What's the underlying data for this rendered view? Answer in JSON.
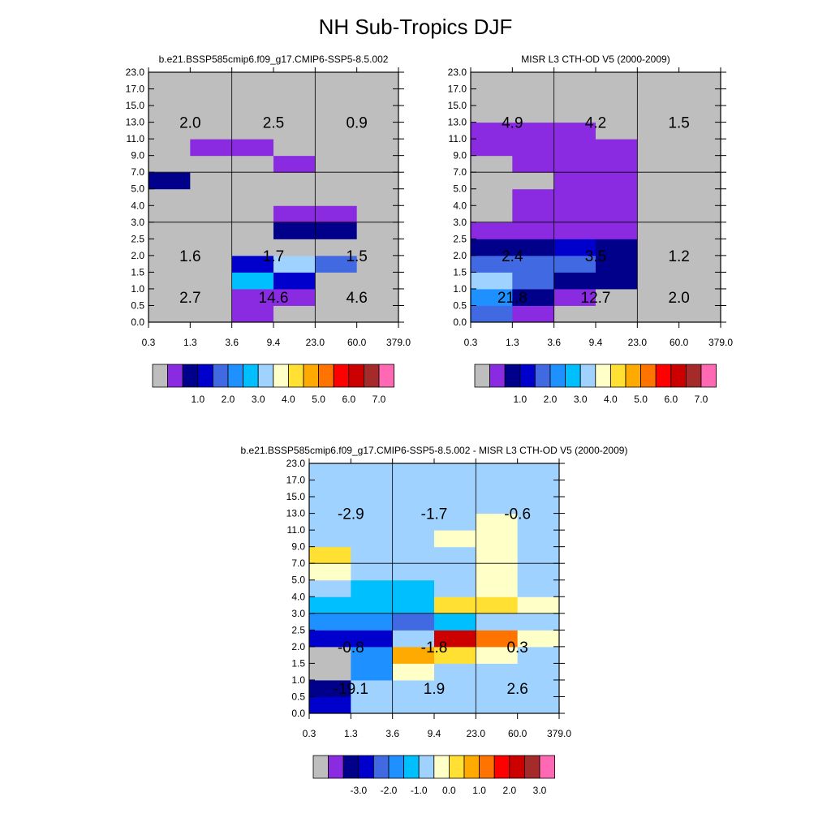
{
  "page_title": "NH Sub-Tropics DJF",
  "palette": [
    "#bebebe",
    "#8a2be2",
    "#00008b",
    "#0000cd",
    "#4169e1",
    "#1e90ff",
    "#00bfff",
    "#a0d2ff",
    "#ffffc8",
    "#ffe033",
    "#ffaa00",
    "#ff7300",
    "#ff0000",
    "#cd0000",
    "#a52a2a",
    "#ff69b4"
  ],
  "chart_data": [
    {
      "type": "heatmap",
      "title": "b.e21.BSSP585cmip6.f09_g17.CMIP6-SSP5-8.5.002",
      "x_ticks": [
        "0.3",
        "1.3",
        "3.6",
        "9.4",
        "23.0",
        "60.0",
        "379.0"
      ],
      "y_ticks": [
        "0.0",
        "0.5",
        "1.0",
        "1.5",
        "2.0",
        "2.5",
        "3.0",
        "4.0",
        "5.0",
        "7.0",
        "9.0",
        "11.0",
        "13.0",
        "15.0",
        "17.0",
        "23.0"
      ],
      "cells": [
        [
          0,
          0,
          1,
          0,
          0,
          0
        ],
        [
          0,
          0,
          1,
          1,
          0,
          0
        ],
        [
          0,
          0,
          6,
          3,
          0,
          0
        ],
        [
          0,
          0,
          3,
          7,
          4,
          0
        ],
        [
          0,
          0,
          0,
          0,
          0,
          0
        ],
        [
          0,
          0,
          0,
          2,
          2,
          0
        ],
        [
          0,
          0,
          0,
          1,
          1,
          0
        ],
        [
          0,
          0,
          0,
          0,
          0,
          0
        ],
        [
          2,
          0,
          0,
          0,
          0,
          0
        ],
        [
          0,
          0,
          0,
          1,
          0,
          0
        ],
        [
          0,
          1,
          1,
          0,
          0,
          0
        ],
        [
          0,
          0,
          0,
          0,
          0,
          0
        ],
        [
          0,
          0,
          0,
          0,
          0,
          0
        ],
        [
          0,
          0,
          0,
          0,
          0,
          0
        ],
        [
          0,
          0,
          0,
          0,
          0,
          0
        ]
      ],
      "annotations": [
        {
          "x": 0.5,
          "y": 1.5,
          "text": "2.7"
        },
        {
          "x": 2.5,
          "y": 1.5,
          "text": "14.6"
        },
        {
          "x": 4.5,
          "y": 1.5,
          "text": "4.6"
        },
        {
          "x": 0.5,
          "y": 4.0,
          "text": "1.6"
        },
        {
          "x": 2.5,
          "y": 4.0,
          "text": "1.7"
        },
        {
          "x": 4.5,
          "y": 4.0,
          "text": "1.5"
        },
        {
          "x": 0.5,
          "y": 12.0,
          "text": "2.0"
        },
        {
          "x": 2.5,
          "y": 12.0,
          "text": "2.5"
        },
        {
          "x": 4.5,
          "y": 12.0,
          "text": "0.9"
        }
      ],
      "colorbar_labels": [
        "1.0",
        "2.0",
        "3.0",
        "4.0",
        "5.0",
        "6.0",
        "7.0"
      ]
    },
    {
      "type": "heatmap",
      "title": "MISR L3 CTH-OD V5 (2000-2009)",
      "x_ticks": [
        "0.3",
        "1.3",
        "3.6",
        "9.4",
        "23.0",
        "60.0",
        "379.0"
      ],
      "y_ticks": [
        "0.0",
        "0.5",
        "1.0",
        "1.5",
        "2.0",
        "2.5",
        "3.0",
        "4.0",
        "5.0",
        "7.0",
        "9.0",
        "11.0",
        "13.0",
        "15.0",
        "17.0",
        "23.0"
      ],
      "cells": [
        [
          4,
          1,
          0,
          0,
          0,
          0
        ],
        [
          5,
          2,
          1,
          0,
          0,
          0
        ],
        [
          7,
          4,
          2,
          2,
          0,
          0
        ],
        [
          4,
          4,
          4,
          2,
          0,
          0
        ],
        [
          2,
          2,
          3,
          2,
          0,
          0
        ],
        [
          1,
          1,
          1,
          1,
          0,
          0
        ],
        [
          0,
          1,
          1,
          1,
          0,
          0
        ],
        [
          0,
          1,
          1,
          1,
          0,
          0
        ],
        [
          0,
          0,
          1,
          1,
          0,
          0
        ],
        [
          0,
          1,
          1,
          1,
          0,
          0
        ],
        [
          1,
          1,
          1,
          1,
          0,
          0
        ],
        [
          1,
          1,
          1,
          0,
          0,
          0
        ],
        [
          0,
          0,
          0,
          0,
          0,
          0
        ],
        [
          0,
          0,
          0,
          0,
          0,
          0
        ],
        [
          0,
          0,
          0,
          0,
          0,
          0
        ]
      ],
      "annotations": [
        {
          "x": 0.5,
          "y": 1.5,
          "text": "21.8"
        },
        {
          "x": 2.5,
          "y": 1.5,
          "text": "12.7"
        },
        {
          "x": 4.5,
          "y": 1.5,
          "text": "2.0"
        },
        {
          "x": 0.5,
          "y": 4.0,
          "text": "2.4"
        },
        {
          "x": 2.5,
          "y": 4.0,
          "text": "3.5"
        },
        {
          "x": 4.5,
          "y": 4.0,
          "text": "1.2"
        },
        {
          "x": 0.5,
          "y": 12.0,
          "text": "4.9"
        },
        {
          "x": 2.5,
          "y": 12.0,
          "text": "4.2"
        },
        {
          "x": 4.5,
          "y": 12.0,
          "text": "1.5"
        }
      ],
      "colorbar_labels": [
        "1.0",
        "2.0",
        "3.0",
        "4.0",
        "5.0",
        "6.0",
        "7.0"
      ]
    },
    {
      "type": "heatmap",
      "title": "b.e21.BSSP585cmip6.f09_g17.CMIP6-SSP5-8.5.002 - MISR L3 CTH-OD V5 (2000-2009)",
      "x_ticks": [
        "0.3",
        "1.3",
        "3.6",
        "9.4",
        "23.0",
        "60.0",
        "379.0"
      ],
      "y_ticks": [
        "0.0",
        "0.5",
        "1.0",
        "1.5",
        "2.0",
        "2.5",
        "3.0",
        "4.0",
        "5.0",
        "7.0",
        "9.0",
        "11.0",
        "13.0",
        "15.0",
        "17.0",
        "23.0"
      ],
      "cells": [
        [
          3,
          7,
          7,
          7,
          7,
          7
        ],
        [
          2,
          7,
          7,
          7,
          7,
          7
        ],
        [
          0,
          5,
          8,
          7,
          7,
          7
        ],
        [
          0,
          5,
          10,
          9,
          8,
          7
        ],
        [
          3,
          3,
          7,
          13,
          11,
          8
        ],
        [
          5,
          5,
          4,
          6,
          7,
          7
        ],
        [
          6,
          6,
          6,
          9,
          9,
          8
        ],
        [
          7,
          6,
          6,
          7,
          8,
          7
        ],
        [
          8,
          7,
          7,
          7,
          8,
          7
        ],
        [
          9,
          7,
          7,
          7,
          8,
          7
        ],
        [
          7,
          7,
          7,
          8,
          8,
          7
        ],
        [
          7,
          7,
          7,
          7,
          8,
          7
        ],
        [
          7,
          7,
          7,
          7,
          7,
          7
        ],
        [
          7,
          7,
          7,
          7,
          7,
          7
        ],
        [
          7,
          7,
          7,
          7,
          7,
          7
        ]
      ],
      "annotations": [
        {
          "x": 0.5,
          "y": 1.5,
          "text": "-19.1"
        },
        {
          "x": 2.5,
          "y": 1.5,
          "text": "1.9"
        },
        {
          "x": 4.5,
          "y": 1.5,
          "text": "2.6"
        },
        {
          "x": 0.5,
          "y": 4.0,
          "text": "-0.8"
        },
        {
          "x": 2.5,
          "y": 4.0,
          "text": "-1.8"
        },
        {
          "x": 4.5,
          "y": 4.0,
          "text": "0.3"
        },
        {
          "x": 0.5,
          "y": 12.0,
          "text": "-2.9"
        },
        {
          "x": 2.5,
          "y": 12.0,
          "text": "-1.7"
        },
        {
          "x": 4.5,
          "y": 12.0,
          "text": "-0.6"
        }
      ],
      "colorbar_labels": [
        "-3.0",
        "-2.0",
        "-1.0",
        "0.0",
        "1.0",
        "2.0",
        "3.0"
      ]
    }
  ]
}
